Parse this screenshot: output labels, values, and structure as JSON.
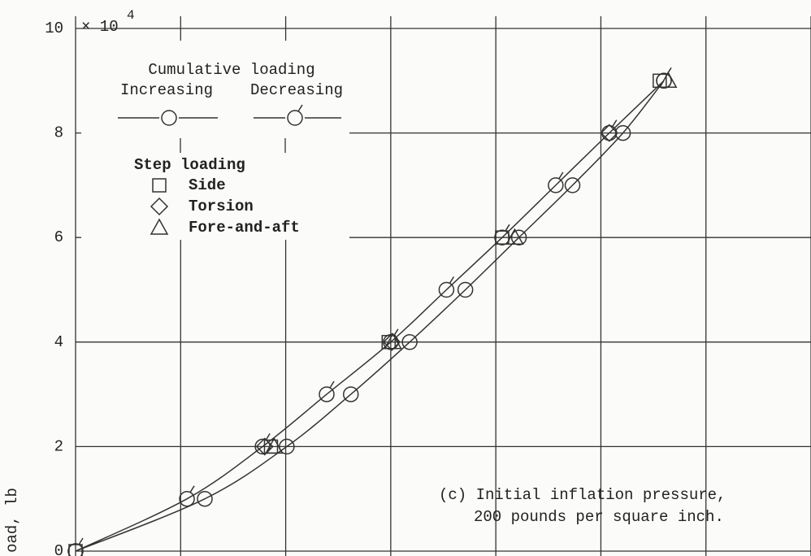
{
  "chart_data": {
    "type": "scatter",
    "y_axis_label": "oad, lb",
    "y_multiplier": "× 10",
    "y_multiplier_exponent": "4",
    "xlim": [
      0,
      7
    ],
    "xticks": [
      0,
      1,
      2,
      3,
      4,
      5,
      6,
      7
    ],
    "ylim": [
      0,
      10
    ],
    "yticks": [
      0,
      2,
      4,
      6,
      8,
      10
    ],
    "grid": true,
    "legend_titles": [
      "Cumulative loading",
      "Step loading"
    ],
    "annotation": [
      "(c) Initial inflation pressure,",
      "200 pounds per square inch."
    ],
    "series": [
      {
        "name": "Increasing",
        "marker": "circle",
        "line": true,
        "color": "#333333",
        "x": [
          0,
          1.23,
          2.01,
          2.62,
          3.18,
          3.71,
          4.22,
          4.73,
          5.21,
          5.6
        ],
        "values": [
          0,
          1,
          2,
          3,
          4,
          5,
          6,
          7,
          8,
          9
        ]
      },
      {
        "name": "Decreasing",
        "marker": "flagged-circle",
        "line": true,
        "color": "#333333",
        "x": [
          0,
          1.06,
          1.78,
          2.39,
          3.0,
          3.53,
          4.06,
          4.57,
          5.08,
          5.6
        ],
        "values": [
          0,
          1,
          2,
          3,
          4,
          5,
          6,
          7,
          8,
          9
        ]
      },
      {
        "name": "Side",
        "marker": "square",
        "line": false,
        "color": "#333333",
        "x": [
          0,
          1.86,
          2.98,
          4.06,
          5.56
        ],
        "values": [
          0,
          2,
          4,
          6,
          9
        ]
      },
      {
        "name": "Torsion",
        "marker": "diamond",
        "line": false,
        "color": "#333333",
        "x": [
          1.8,
          3.01,
          5.08
        ],
        "values": [
          2,
          4,
          8
        ]
      },
      {
        "name": "Fore-and-aft",
        "marker": "triangle",
        "line": false,
        "color": "#333333",
        "x": [
          1.89,
          3.02,
          4.18,
          5.64
        ],
        "values": [
          2,
          4,
          6,
          9
        ]
      }
    ]
  }
}
